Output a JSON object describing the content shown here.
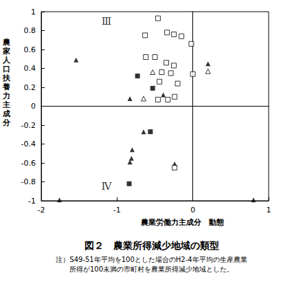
{
  "chart_data": {
    "type": "scatter",
    "title": "図２　農業所得減少地域の類型",
    "subtitle": "注）S49-51年平均を100とした場合のH2-4年平均の生産農業\n所得が100未満の市町村を農業所得減少地域とした。",
    "x_label": "農業労働力主成分　動態",
    "y_label": "農家人口扶養力主成分",
    "xlim": [
      -2,
      1
    ],
    "xticks": [
      -2,
      -1,
      0,
      1
    ],
    "ylim": [
      -1,
      1
    ],
    "yticks": [
      -1,
      -0.8,
      -0.6,
      -0.4,
      -0.2,
      0,
      0.2,
      0.4,
      0.6,
      0.8,
      1
    ],
    "grid": false,
    "annotations": [
      {
        "text": "Ⅲ",
        "x": -1.14,
        "y": 0.9
      },
      {
        "text": "Ⅳ",
        "x": -1.14,
        "y": -0.85
      }
    ],
    "series": [
      {
        "marker": "triangle",
        "color": "#000000",
        "x": [
          -1.54,
          -0.83,
          -0.39,
          -0.65,
          -0.8,
          -0.81,
          -0.83,
          -0.24,
          0.2,
          -1.76,
          0.8
        ],
        "y": [
          0.49,
          0.08,
          0.12,
          -0.27,
          -0.46,
          -0.55,
          -0.59,
          -0.61,
          0.45,
          -0.99,
          -0.99
        ]
      },
      {
        "marker": "square",
        "color": "#000000",
        "x": [
          -0.73,
          -0.53,
          -0.56,
          -0.84
        ],
        "y": [
          0.32,
          0.19,
          -0.27,
          -0.82
        ]
      },
      {
        "marker": "open_square",
        "color": "#000000",
        "x": [
          -0.46,
          -0.63,
          -0.34,
          -0.25,
          -0.15,
          -0.02,
          -0.62,
          -0.5,
          -0.35,
          -0.25,
          -0.41,
          -0.29,
          0,
          -0.44,
          -0.2,
          -0.33,
          -0.24,
          -0.46,
          -0.24
        ],
        "y": [
          0.93,
          0.75,
          0.78,
          0.76,
          0.74,
          0.66,
          0.52,
          0.52,
          0.46,
          0.43,
          0.36,
          0.35,
          0.34,
          0.26,
          0.24,
          0.07,
          0.1,
          0.07,
          -0.65
        ]
      },
      {
        "marker": "open_triangle",
        "color": "#000000",
        "x": [
          -0.53,
          -0.65,
          0.2
        ],
        "y": [
          0.36,
          0.08,
          0.37
        ]
      }
    ]
  }
}
